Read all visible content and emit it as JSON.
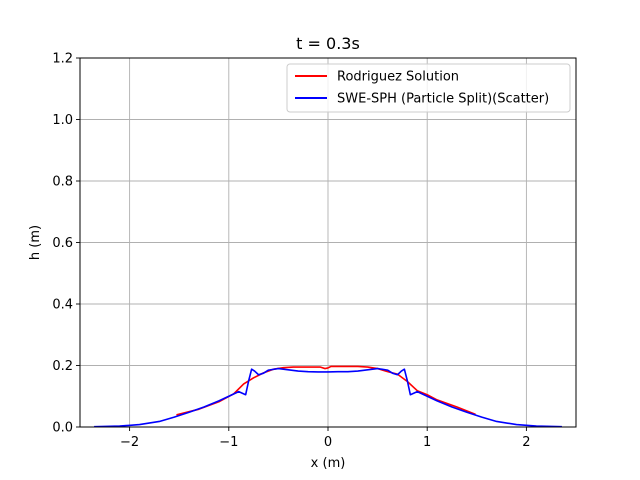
{
  "chart_data": {
    "type": "line",
    "title": "t = 0.3s",
    "xlabel": "x (m)",
    "ylabel": "h (m)",
    "xlim": [
      -2.5,
      2.5
    ],
    "ylim": [
      0.0,
      1.2
    ],
    "xticks": [
      -2,
      -1,
      0,
      1,
      2
    ],
    "xtick_labels": [
      "−2",
      "−1",
      "0",
      "1",
      "2"
    ],
    "yticks": [
      0.0,
      0.2,
      0.4,
      0.6,
      0.8,
      1.0,
      1.2
    ],
    "ytick_labels": [
      "0.0",
      "0.2",
      "0.4",
      "0.6",
      "0.8",
      "1.0",
      "1.2"
    ],
    "grid": true,
    "legend_position": "top-right",
    "series": [
      {
        "name": "Rodriguez Solution",
        "color": "#ff0000",
        "x": [
          -1.52,
          -1.3,
          -1.1,
          -0.95,
          -0.85,
          -0.75,
          -0.65,
          -0.55,
          -0.45,
          -0.35,
          -0.25,
          -0.15,
          -0.08,
          -0.03,
          0.0,
          0.03,
          0.1,
          0.2,
          0.3,
          0.4,
          0.5,
          0.6,
          0.7,
          0.8,
          0.9,
          1.0,
          1.1,
          1.3,
          1.48
        ],
        "y": [
          0.04,
          0.058,
          0.082,
          0.108,
          0.14,
          0.16,
          0.176,
          0.188,
          0.193,
          0.195,
          0.195,
          0.195,
          0.195,
          0.19,
          0.192,
          0.197,
          0.197,
          0.197,
          0.197,
          0.195,
          0.19,
          0.18,
          0.172,
          0.148,
          0.118,
          0.105,
          0.088,
          0.065,
          0.042
        ]
      },
      {
        "name": "SWE-SPH (Particle Split)(Scatter)",
        "color": "#0000ff",
        "x": [
          -2.35,
          -2.1,
          -1.9,
          -1.7,
          -1.55,
          -1.4,
          -1.25,
          -1.1,
          -1.0,
          -0.9,
          -0.83,
          -0.8,
          -0.77,
          -0.74,
          -0.7,
          -0.65,
          -0.6,
          -0.5,
          -0.4,
          -0.3,
          -0.2,
          -0.1,
          0.0,
          0.1,
          0.2,
          0.3,
          0.4,
          0.5,
          0.6,
          0.65,
          0.7,
          0.74,
          0.77,
          0.8,
          0.83,
          0.9,
          1.0,
          1.1,
          1.25,
          1.4,
          1.55,
          1.7,
          1.9,
          2.1,
          2.35
        ],
        "y": [
          0.001,
          0.003,
          0.008,
          0.018,
          0.032,
          0.048,
          0.065,
          0.085,
          0.1,
          0.115,
          0.105,
          0.15,
          0.188,
          0.182,
          0.17,
          0.175,
          0.185,
          0.19,
          0.186,
          0.182,
          0.18,
          0.179,
          0.179,
          0.18,
          0.18,
          0.182,
          0.186,
          0.19,
          0.185,
          0.175,
          0.17,
          0.182,
          0.188,
          0.15,
          0.105,
          0.115,
          0.1,
          0.085,
          0.065,
          0.048,
          0.032,
          0.018,
          0.008,
          0.003,
          0.001
        ]
      }
    ]
  }
}
